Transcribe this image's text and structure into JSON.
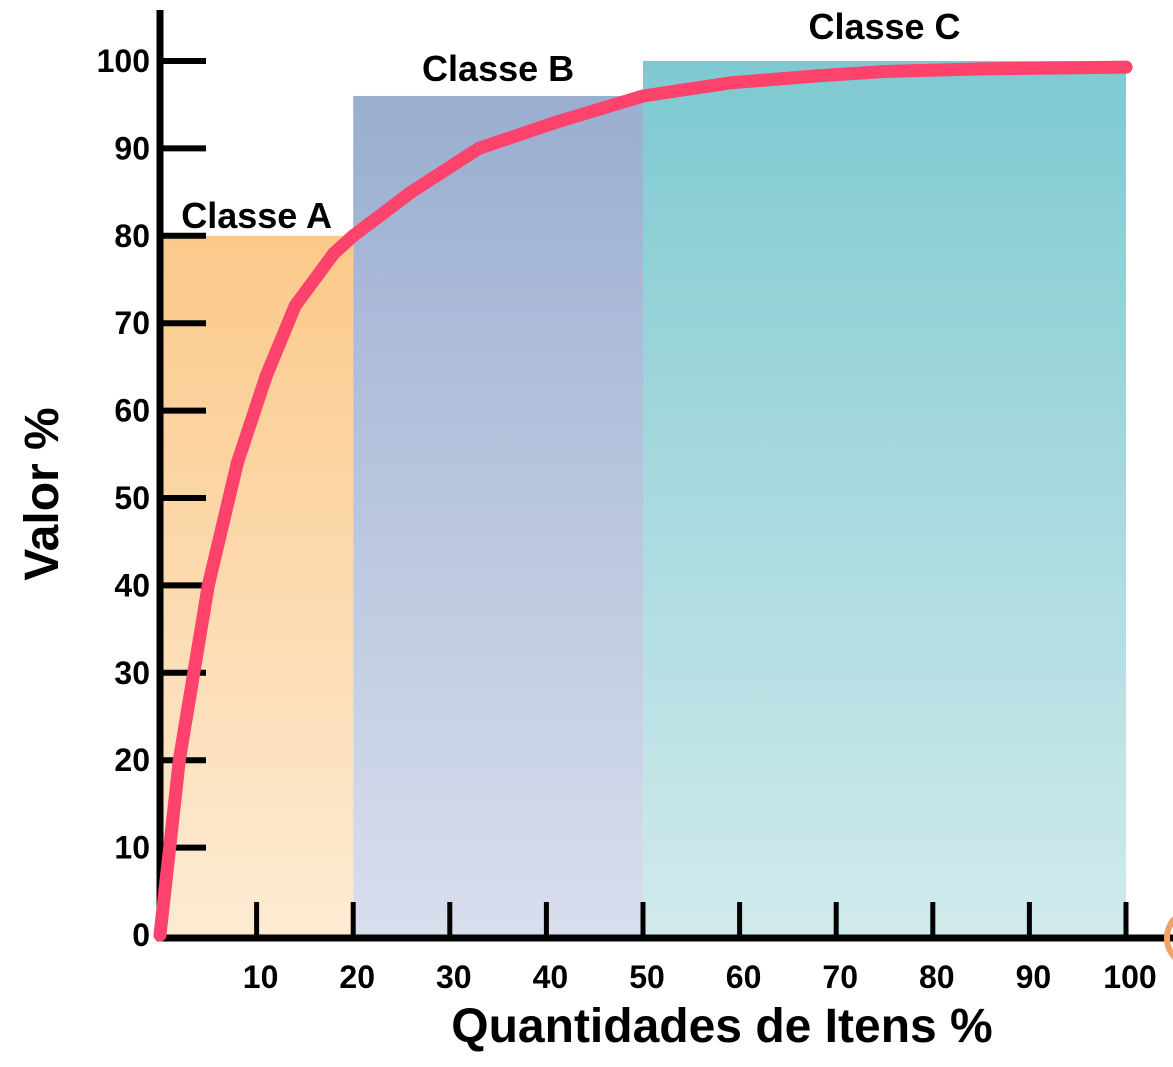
{
  "chart_data": {
    "type": "line",
    "xlabel": "Quantidades de Itens %",
    "ylabel": "Valor %",
    "xlim": [
      0,
      100
    ],
    "ylim": [
      0,
      100
    ],
    "x_ticks": [
      10,
      20,
      30,
      40,
      50,
      60,
      70,
      80,
      90,
      100
    ],
    "y_ticks": [
      0,
      10,
      20,
      30,
      40,
      50,
      60,
      70,
      80,
      90,
      100
    ],
    "regions": [
      {
        "name": "Classe A",
        "x_start": 0,
        "x_end": 20,
        "height": 80,
        "color": "#fbc98a"
      },
      {
        "name": "Classe B",
        "x_start": 20,
        "x_end": 50,
        "height": 96,
        "color": "#9aaed0"
      },
      {
        "name": "Classe C",
        "x_start": 50,
        "x_end": 100,
        "height": 100,
        "color": "#7ec9d1"
      }
    ],
    "series": [
      {
        "color": "#fd426b",
        "x": [
          0,
          2,
          5,
          8,
          11,
          14,
          18,
          20,
          26,
          33,
          41,
          50,
          59,
          68,
          75,
          85,
          100
        ],
        "y": [
          0,
          20,
          40,
          54,
          64,
          72,
          78,
          80,
          85,
          90,
          93,
          96,
          97.5,
          98.3,
          98.8,
          99.1,
          99.3
        ]
      }
    ],
    "grid": false
  }
}
